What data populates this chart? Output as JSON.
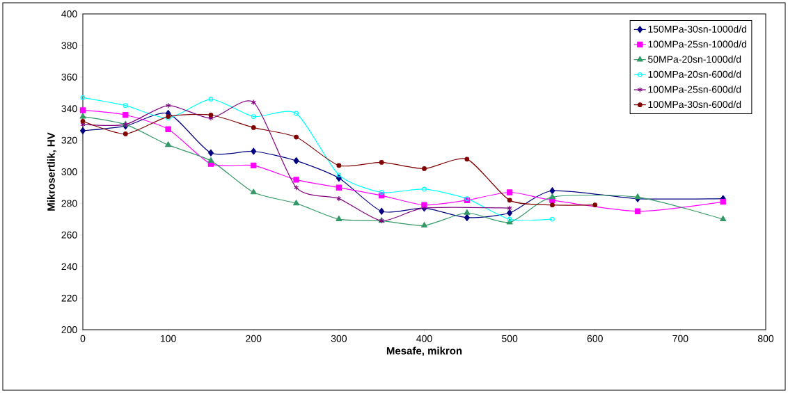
{
  "chart_data": {
    "type": "line",
    "xlabel": "Mesafe, mikron",
    "ylabel": "Mikrosertlik, HV",
    "xlim": [
      0,
      800
    ],
    "xticks": [
      0,
      100,
      200,
      300,
      400,
      500,
      600,
      700,
      800
    ],
    "ylim": [
      200,
      400
    ],
    "yticks": [
      200,
      220,
      240,
      260,
      280,
      300,
      320,
      340,
      360,
      380,
      400
    ],
    "grid": false,
    "legend": "top right",
    "series": [
      {
        "name": "150MPa-30sn-1000d/d",
        "color": "#000080",
        "marker": "diamond",
        "x": [
          0,
          50,
          100,
          150,
          200,
          250,
          300,
          350,
          400,
          450,
          500,
          550,
          650,
          750
        ],
        "values": [
          326,
          329,
          337,
          312,
          313,
          307,
          296,
          275,
          277,
          271,
          274,
          288,
          283,
          283
        ]
      },
      {
        "name": "100MPa-25sn-1000d/d",
        "color": "#ff00ff",
        "marker": "square",
        "x": [
          0,
          50,
          100,
          150,
          200,
          250,
          300,
          350,
          400,
          450,
          500,
          550,
          650,
          750
        ],
        "values": [
          339,
          336,
          327,
          305,
          304,
          295,
          290,
          285,
          279,
          282,
          287,
          282,
          275,
          281
        ]
      },
      {
        "name": "50MPa-20sn-1000d/d",
        "color": "#339966",
        "marker": "triangle",
        "x": [
          0,
          50,
          100,
          150,
          200,
          250,
          300,
          350,
          400,
          450,
          500,
          550,
          650,
          750
        ],
        "values": [
          335,
          330,
          317,
          307,
          287,
          280,
          270,
          269,
          266,
          274,
          268,
          284,
          284,
          270
        ]
      },
      {
        "name": "100MPa-20sn-600d/d",
        "color": "#00ffff",
        "marker": "circle_open",
        "x": [
          0,
          50,
          100,
          150,
          200,
          250,
          300,
          350,
          400,
          450,
          500,
          550
        ],
        "values": [
          347,
          342,
          334,
          346,
          335,
          337,
          298,
          287,
          289,
          283,
          270,
          270
        ]
      },
      {
        "name": "100MPa-25sn-600d/d",
        "color": "#800080",
        "marker": "cross",
        "x": [
          0,
          50,
          100,
          150,
          200,
          250,
          300,
          350,
          400,
          500
        ],
        "values": [
          330,
          330,
          342,
          334,
          344,
          290,
          283,
          269,
          277,
          277
        ]
      },
      {
        "name": "100MPa-30sn-600d/d",
        "color": "#800000",
        "marker": "circle",
        "x": [
          0,
          50,
          100,
          150,
          200,
          250,
          300,
          350,
          400,
          450,
          500,
          550,
          600
        ],
        "values": [
          332,
          324,
          335,
          336,
          328,
          322,
          304,
          306,
          302,
          308,
          282,
          279,
          279
        ]
      }
    ]
  }
}
